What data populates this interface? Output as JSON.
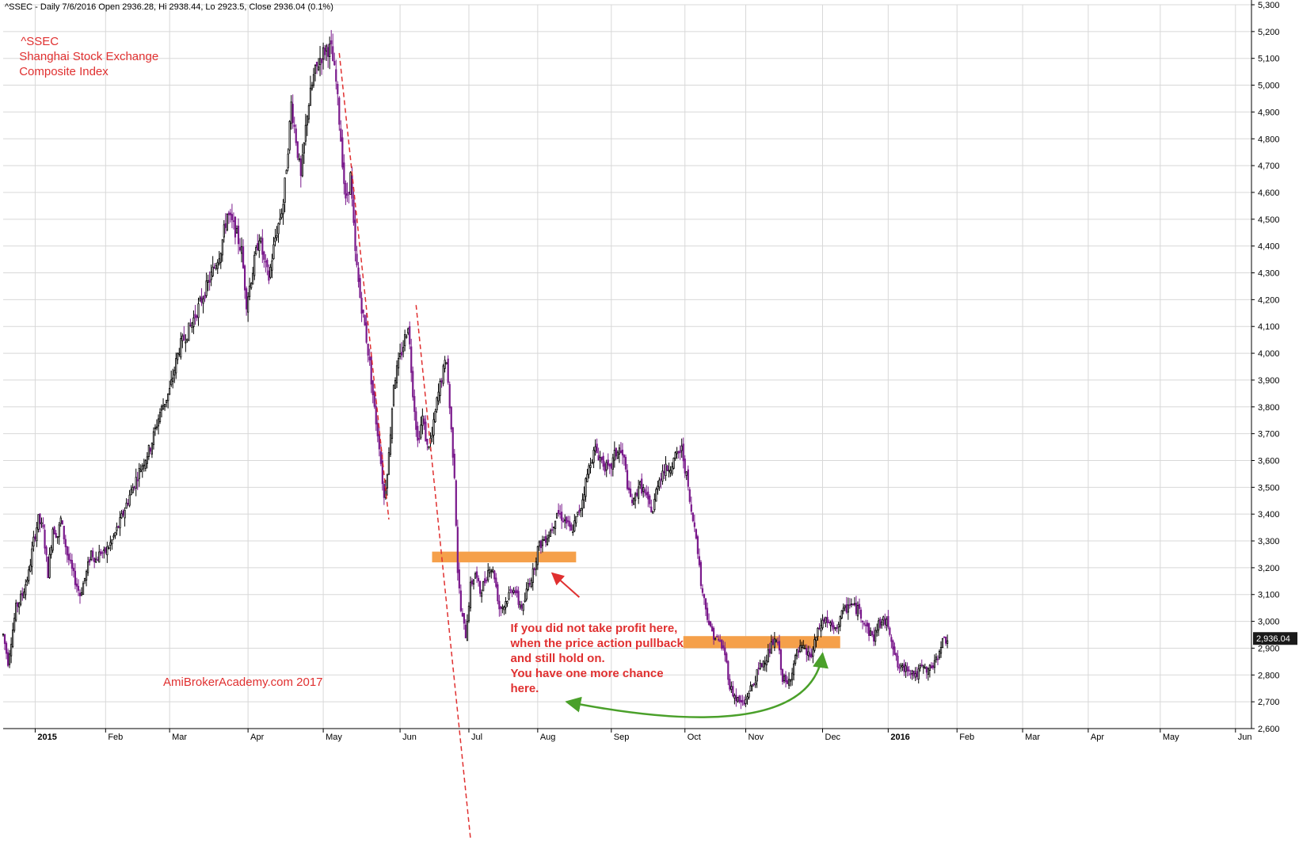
{
  "header": {
    "text": "^SSEC - Daily 7/6/2016 Open 2936.28, Hi 2938.44, Lo 2923.5, Close 2936.04 (0.1%)"
  },
  "title_block": {
    "line1": "^SSEC",
    "line2": "Shanghai Stock Exchange",
    "line3": "Composite Index"
  },
  "watermark": "AmiBrokerAcademy.com  2017",
  "annotation": {
    "lines": [
      "If you did not take profit here,",
      "when the price action pullback",
      "and still hold on.",
      "You have one more chance",
      "here."
    ]
  },
  "last_price_label": "2,936.04",
  "colors": {
    "up_candle": "#ffffff",
    "down_candle": "#7a1a8c",
    "candle_outline": "#000000",
    "grid": "#d8d8d8",
    "title_text": "#e03030",
    "annotation_text": "#e03030",
    "support_zone": "#f5a04a",
    "trendline": "#e03030",
    "arrow_red": "#e03030",
    "arrow_green": "#4aa02a"
  },
  "chart_data": {
    "type": "candlestick",
    "ylim": [
      2600,
      5300
    ],
    "ytick_labels": [
      "2,600",
      "2,700",
      "2,800",
      "2,900",
      "3,000",
      "3,100",
      "3,200",
      "3,300",
      "3,400",
      "3,500",
      "3,600",
      "3,700",
      "3,800",
      "3,900",
      "4,000",
      "4,100",
      "4,200",
      "4,300",
      "4,400",
      "4,500",
      "4,600",
      "4,700",
      "4,800",
      "4,900",
      "5,000",
      "5,100",
      "5,200",
      "5,300"
    ],
    "ytick_values": [
      2600,
      2700,
      2800,
      2900,
      3000,
      3100,
      3200,
      3300,
      3400,
      3500,
      3600,
      3700,
      3800,
      3900,
      4000,
      4100,
      4200,
      4300,
      4400,
      4500,
      4600,
      4700,
      4800,
      4900,
      5000,
      5100,
      5200,
      5300
    ],
    "xtick_labels": [
      "2015",
      "Feb",
      "Mar",
      "Apr",
      "May",
      "Jun",
      "Jul",
      "Aug",
      "Sep",
      "Oct",
      "Nov",
      "Dec",
      "2016",
      "Feb",
      "Mar",
      "Apr",
      "May",
      "Jun"
    ],
    "xtick_days": [
      20,
      64,
      104,
      153,
      200,
      248,
      291,
      334,
      380,
      426,
      464,
      512,
      553,
      596,
      637,
      678,
      723,
      770
    ],
    "xtick_bold": [
      true,
      false,
      false,
      false,
      false,
      false,
      false,
      false,
      false,
      false,
      false,
      false,
      true,
      false,
      false,
      false,
      false,
      false
    ],
    "x_range_days": [
      0,
      780
    ],
    "price_anchors": [
      [
        0,
        2950
      ],
      [
        3,
        2850
      ],
      [
        8,
        3050
      ],
      [
        12,
        3100
      ],
      [
        16,
        3180
      ],
      [
        19,
        3300
      ],
      [
        22,
        3380
      ],
      [
        25,
        3340
      ],
      [
        28,
        3180
      ],
      [
        31,
        3350
      ],
      [
        34,
        3320
      ],
      [
        36,
        3380
      ],
      [
        40,
        3250
      ],
      [
        44,
        3170
      ],
      [
        48,
        3100
      ],
      [
        52,
        3180
      ],
      [
        55,
        3260
      ],
      [
        58,
        3230
      ],
      [
        61,
        3260
      ],
      [
        63,
        3250
      ],
      [
        68,
        3300
      ],
      [
        73,
        3370
      ],
      [
        79,
        3470
      ],
      [
        85,
        3560
      ],
      [
        92,
        3650
      ],
      [
        98,
        3780
      ],
      [
        104,
        3860
      ],
      [
        110,
        4020
      ],
      [
        117,
        4100
      ],
      [
        124,
        4200
      ],
      [
        130,
        4290
      ],
      [
        136,
        4390
      ],
      [
        140,
        4520
      ],
      [
        145,
        4460
      ],
      [
        149,
        4380
      ],
      [
        152,
        4190
      ],
      [
        156,
        4310
      ],
      [
        160,
        4440
      ],
      [
        163,
        4340
      ],
      [
        166,
        4280
      ],
      [
        170,
        4430
      ],
      [
        175,
        4560
      ],
      [
        178,
        4770
      ],
      [
        180,
        4930
      ],
      [
        183,
        4800
      ],
      [
        186,
        4650
      ],
      [
        190,
        4900
      ],
      [
        194,
        5030
      ],
      [
        198,
        5100
      ],
      [
        202,
        5140
      ],
      [
        205,
        5130
      ],
      [
        208,
        5010
      ],
      [
        211,
        4800
      ],
      [
        214,
        4560
      ],
      [
        217,
        4660
      ],
      [
        220,
        4370
      ],
      [
        223,
        4210
      ],
      [
        226,
        4100
      ],
      [
        229,
        3960
      ],
      [
        232,
        3790
      ],
      [
        235,
        3660
      ],
      [
        238,
        3460
      ],
      [
        241,
        3620
      ],
      [
        244,
        3890
      ],
      [
        247,
        3960
      ],
      [
        250,
        4030
      ],
      [
        253,
        4110
      ],
      [
        256,
        3860
      ],
      [
        259,
        3670
      ],
      [
        262,
        3760
      ],
      [
        265,
        3650
      ],
      [
        268,
        3690
      ],
      [
        271,
        3820
      ],
      [
        274,
        3910
      ],
      [
        277,
        3980
      ],
      [
        280,
        3710
      ],
      [
        282,
        3550
      ],
      [
        284,
        3190
      ],
      [
        286,
        3040
      ],
      [
        289,
        2950
      ],
      [
        292,
        3130
      ],
      [
        295,
        3180
      ],
      [
        298,
        3110
      ],
      [
        301,
        3150
      ],
      [
        304,
        3210
      ],
      [
        307,
        3170
      ],
      [
        310,
        3050
      ],
      [
        313,
        3060
      ],
      [
        316,
        3100
      ],
      [
        319,
        3130
      ],
      [
        322,
        3070
      ],
      [
        325,
        3050
      ],
      [
        328,
        3140
      ],
      [
        331,
        3180
      ],
      [
        334,
        3270
      ],
      [
        337,
        3300
      ],
      [
        340,
        3320
      ],
      [
        343,
        3350
      ],
      [
        346,
        3410
      ],
      [
        349,
        3390
      ],
      [
        352,
        3370
      ],
      [
        355,
        3330
      ],
      [
        358,
        3380
      ],
      [
        361,
        3430
      ],
      [
        364,
        3520
      ],
      [
        367,
        3600
      ],
      [
        370,
        3640
      ],
      [
        373,
        3610
      ],
      [
        376,
        3580
      ],
      [
        379,
        3560
      ],
      [
        382,
        3620
      ],
      [
        385,
        3640
      ],
      [
        388,
        3600
      ],
      [
        391,
        3470
      ],
      [
        394,
        3440
      ],
      [
        397,
        3510
      ],
      [
        400,
        3490
      ],
      [
        403,
        3440
      ],
      [
        406,
        3410
      ],
      [
        409,
        3520
      ],
      [
        412,
        3560
      ],
      [
        415,
        3570
      ],
      [
        418,
        3590
      ],
      [
        421,
        3620
      ],
      [
        424,
        3640
      ],
      [
        427,
        3540
      ],
      [
        430,
        3400
      ],
      [
        433,
        3330
      ],
      [
        436,
        3140
      ],
      [
        439,
        3050
      ],
      [
        442,
        2970
      ],
      [
        445,
        2940
      ],
      [
        448,
        2920
      ],
      [
        451,
        2880
      ],
      [
        454,
        2760
      ],
      [
        457,
        2720
      ],
      [
        460,
        2700
      ],
      [
        463,
        2690
      ],
      [
        466,
        2740
      ],
      [
        469,
        2770
      ],
      [
        472,
        2820
      ],
      [
        475,
        2850
      ],
      [
        478,
        2880
      ],
      [
        481,
        2920
      ],
      [
        484,
        2920
      ],
      [
        487,
        2790
      ],
      [
        490,
        2760
      ],
      [
        493,
        2820
      ],
      [
        496,
        2880
      ],
      [
        499,
        2900
      ],
      [
        502,
        2880
      ],
      [
        505,
        2870
      ],
      [
        508,
        2940
      ],
      [
        511,
        2990
      ],
      [
        514,
        3010
      ],
      [
        517,
        2980
      ],
      [
        520,
        2960
      ],
      [
        523,
        3020
      ],
      [
        526,
        3040
      ],
      [
        529,
        3070
      ],
      [
        532,
        3050
      ],
      [
        535,
        3040
      ],
      [
        538,
        3000
      ],
      [
        541,
        2960
      ],
      [
        544,
        2940
      ],
      [
        547,
        2990
      ],
      [
        550,
        3000
      ],
      [
        553,
        2990
      ],
      [
        556,
        2910
      ],
      [
        559,
        2830
      ],
      [
        562,
        2820
      ],
      [
        565,
        2830
      ],
      [
        568,
        2810
      ],
      [
        571,
        2800
      ],
      [
        574,
        2830
      ],
      [
        577,
        2810
      ],
      [
        580,
        2830
      ],
      [
        583,
        2850
      ],
      [
        586,
        2920
      ],
      [
        590,
        2936
      ]
    ],
    "trendlines": [
      {
        "from": [
          210,
          5120
        ],
        "to": [
          241,
          3380
        ]
      },
      {
        "from": [
          258,
          4180
        ],
        "to": [
          292,
          2190
        ]
      }
    ],
    "support_zones": [
      {
        "x_days": [
          268,
          358
        ],
        "y": [
          3220,
          3260
        ]
      },
      {
        "x_days": [
          425,
          523
        ],
        "y": [
          2900,
          2945
        ]
      }
    ],
    "annotation_arrows": [
      {
        "type": "straight",
        "from": [
          360,
          3090
        ],
        "to": [
          343,
          3180
        ]
      },
      {
        "type": "curve",
        "from": [
          512,
          2880
        ],
        "ctrl1": [
          505,
          2580
        ],
        "ctrl2": [
          420,
          2620
        ],
        "to": [
          352,
          2700
        ]
      }
    ],
    "annotation_anchor": [
      317,
      2960
    ],
    "title_anchor": [
      10,
      5150
    ],
    "watermark_anchor": [
      100,
      2760
    ],
    "last_price": 2936.04
  }
}
